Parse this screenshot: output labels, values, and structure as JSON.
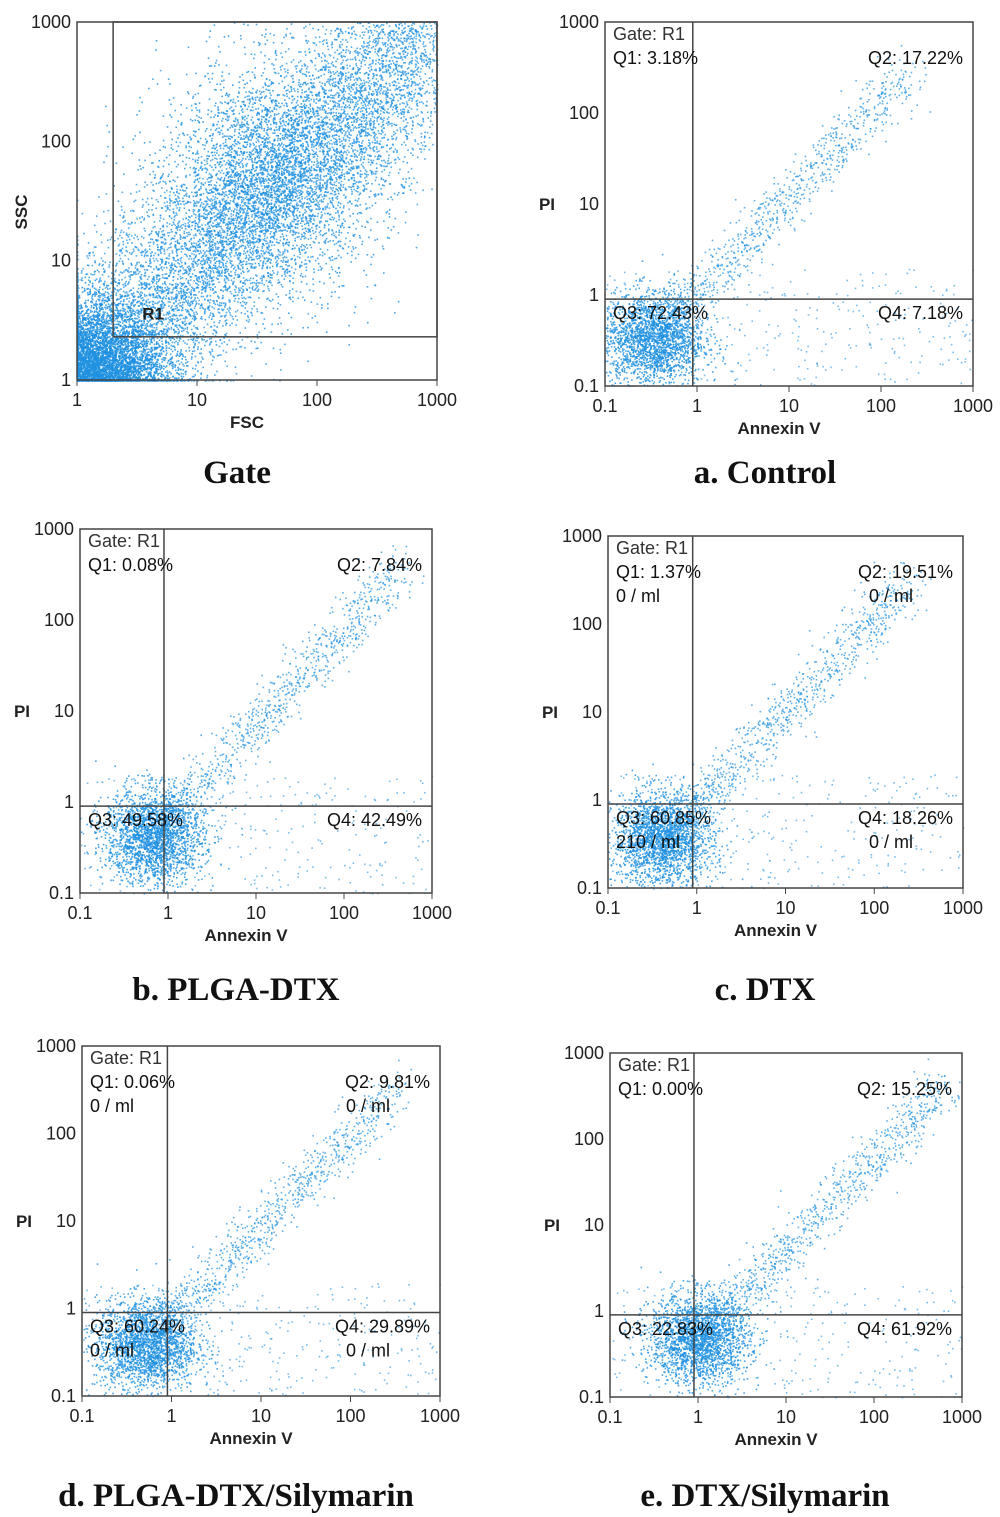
{
  "figure": {
    "panels": [
      {
        "id": "gate",
        "caption": "Gate",
        "xlabel": "FSC",
        "ylabel": "SSC",
        "xticks": [
          "1",
          "10",
          "100",
          "1000"
        ],
        "yticks": [
          "1",
          "10",
          "100",
          "1000"
        ],
        "gate_region_label": "R1",
        "gate_header": "",
        "quadrants": []
      },
      {
        "id": "a",
        "caption": "a. Control",
        "xlabel": "Annexin V",
        "ylabel": "PI",
        "xticks": [
          "0.1",
          "1",
          "10",
          "100",
          "1000"
        ],
        "yticks": [
          "0.1",
          "1",
          "10",
          "100",
          "1000"
        ],
        "gate_header": "Gate: R1",
        "quadrants": [
          {
            "name": "Q1",
            "label": "Q1: 3.18%",
            "count": ""
          },
          {
            "name": "Q2",
            "label": "Q2: 17.22%",
            "count": ""
          },
          {
            "name": "Q3",
            "label": "Q3: 72.43%",
            "count": ""
          },
          {
            "name": "Q4",
            "label": "Q4: 7.18%",
            "count": ""
          }
        ]
      },
      {
        "id": "b",
        "caption": "b. PLGA-DTX",
        "xlabel": "Annexin V",
        "ylabel": "PI",
        "xticks": [
          "0.1",
          "1",
          "10",
          "100",
          "1000"
        ],
        "yticks": [
          "0.1",
          "1",
          "10",
          "100",
          "1000"
        ],
        "gate_header": "Gate: R1",
        "quadrants": [
          {
            "name": "Q1",
            "label": "Q1: 0.08%",
            "count": ""
          },
          {
            "name": "Q2",
            "label": "Q2: 7.84%",
            "count": ""
          },
          {
            "name": "Q3",
            "label": "Q3: 49.58%",
            "count": ""
          },
          {
            "name": "Q4",
            "label": "Q4: 42.49%",
            "count": ""
          }
        ]
      },
      {
        "id": "c",
        "caption": "c. DTX",
        "xlabel": "Annexin V",
        "ylabel": "PI",
        "xticks": [
          "0.1",
          "1",
          "10",
          "100",
          "1000"
        ],
        "yticks": [
          "0.1",
          "1",
          "10",
          "100",
          "1000"
        ],
        "gate_header": "Gate: R1",
        "quadrants": [
          {
            "name": "Q1",
            "label": "Q1: 1.37%",
            "count": "0 / ml"
          },
          {
            "name": "Q2",
            "label": "Q2: 19.51%",
            "count": "0 / ml"
          },
          {
            "name": "Q3",
            "label": "Q3: 60.85%",
            "count": "210 / ml"
          },
          {
            "name": "Q4",
            "label": "Q4: 18.26%",
            "count": "0 / ml"
          }
        ]
      },
      {
        "id": "d",
        "caption": "d. PLGA-DTX/Silymarin",
        "xlabel": "Annexin V",
        "ylabel": "PI",
        "xticks": [
          "0.1",
          "1",
          "10",
          "100",
          "1000"
        ],
        "yticks": [
          "0.1",
          "1",
          "10",
          "100",
          "1000"
        ],
        "gate_header": "Gate: R1",
        "quadrants": [
          {
            "name": "Q1",
            "label": "Q1: 0.06%",
            "count": "0 / ml"
          },
          {
            "name": "Q2",
            "label": "Q2: 9.81%",
            "count": "0 / ml"
          },
          {
            "name": "Q3",
            "label": "Q3: 60.24%",
            "count": "0 / ml"
          },
          {
            "name": "Q4",
            "label": "Q4: 29.89%",
            "count": "0 / ml"
          }
        ]
      },
      {
        "id": "e",
        "caption": "e. DTX/Silymarin",
        "xlabel": "Annexin V",
        "ylabel": "PI",
        "xticks": [
          "0.1",
          "1",
          "10",
          "100",
          "1000"
        ],
        "yticks": [
          "0.1",
          "1",
          "10",
          "100",
          "1000"
        ],
        "gate_header": "Gate: R1",
        "quadrants": [
          {
            "name": "Q1",
            "label": "Q1: 0.00%",
            "count": ""
          },
          {
            "name": "Q2",
            "label": "Q2: 15.25%",
            "count": ""
          },
          {
            "name": "Q3",
            "label": "Q3: 22.83%",
            "count": ""
          },
          {
            "name": "Q4",
            "label": "Q4: 61.92%",
            "count": ""
          }
        ]
      }
    ],
    "colors": {
      "dots": "#1e90e0",
      "axes": "#444444",
      "background": "#ffffff"
    }
  },
  "chart_data": [
    {
      "type": "scatter",
      "title": "Gate",
      "xlabel": "FSC",
      "ylabel": "SSC",
      "xscale": "log",
      "yscale": "log",
      "xlim": [
        1,
        1000
      ],
      "ylim": [
        1,
        1000
      ],
      "gate": {
        "name": "R1",
        "x_min": 2,
        "y_min": 2.3
      },
      "series": [
        {
          "name": "events",
          "center": [
            30,
            30
          ],
          "spread_decades": 0.9
        }
      ]
    },
    {
      "type": "scatter",
      "title": "a. Control",
      "xlabel": "Annexin V",
      "ylabel": "PI",
      "xscale": "log",
      "yscale": "log",
      "xlim": [
        0.1,
        1000
      ],
      "ylim": [
        0.1,
        1000
      ],
      "quadrant_split": {
        "x": 0.9,
        "y": 0.9
      },
      "quadrant_percent": {
        "Q1": 3.18,
        "Q2": 17.22,
        "Q3": 72.43,
        "Q4": 7.18
      }
    },
    {
      "type": "scatter",
      "title": "b. PLGA-DTX",
      "xlabel": "Annexin V",
      "ylabel": "PI",
      "xscale": "log",
      "yscale": "log",
      "xlim": [
        0.1,
        1000
      ],
      "ylim": [
        0.1,
        1000
      ],
      "quadrant_split": {
        "x": 0.9,
        "y": 0.9
      },
      "quadrant_percent": {
        "Q1": 0.08,
        "Q2": 7.84,
        "Q3": 49.58,
        "Q4": 42.49
      }
    },
    {
      "type": "scatter",
      "title": "c. DTX",
      "xlabel": "Annexin V",
      "ylabel": "PI",
      "xscale": "log",
      "yscale": "log",
      "xlim": [
        0.1,
        1000
      ],
      "ylim": [
        0.1,
        1000
      ],
      "quadrant_split": {
        "x": 0.9,
        "y": 0.9
      },
      "quadrant_percent": {
        "Q1": 1.37,
        "Q2": 19.51,
        "Q3": 60.85,
        "Q4": 18.26
      },
      "quadrant_count": {
        "Q1": "0 / ml",
        "Q2": "0 / ml",
        "Q3": "210 / ml",
        "Q4": "0 / ml"
      }
    },
    {
      "type": "scatter",
      "title": "d. PLGA-DTX/Silymarin",
      "xlabel": "Annexin V",
      "ylabel": "PI",
      "xscale": "log",
      "yscale": "log",
      "xlim": [
        0.1,
        1000
      ],
      "ylim": [
        0.1,
        1000
      ],
      "quadrant_split": {
        "x": 0.9,
        "y": 0.9
      },
      "quadrant_percent": {
        "Q1": 0.06,
        "Q2": 9.81,
        "Q3": 60.24,
        "Q4": 29.89
      },
      "quadrant_count": {
        "Q1": "0 / ml",
        "Q2": "0 / ml",
        "Q3": "0 / ml",
        "Q4": "0 / ml"
      }
    },
    {
      "type": "scatter",
      "title": "e. DTX/Silymarin",
      "xlabel": "Annexin V",
      "ylabel": "PI",
      "xscale": "log",
      "yscale": "log",
      "xlim": [
        0.1,
        1000
      ],
      "ylim": [
        0.1,
        1000
      ],
      "quadrant_split": {
        "x": 0.9,
        "y": 0.9
      },
      "quadrant_percent": {
        "Q1": 0.0,
        "Q2": 15.25,
        "Q3": 22.83,
        "Q4": 61.92
      }
    }
  ]
}
